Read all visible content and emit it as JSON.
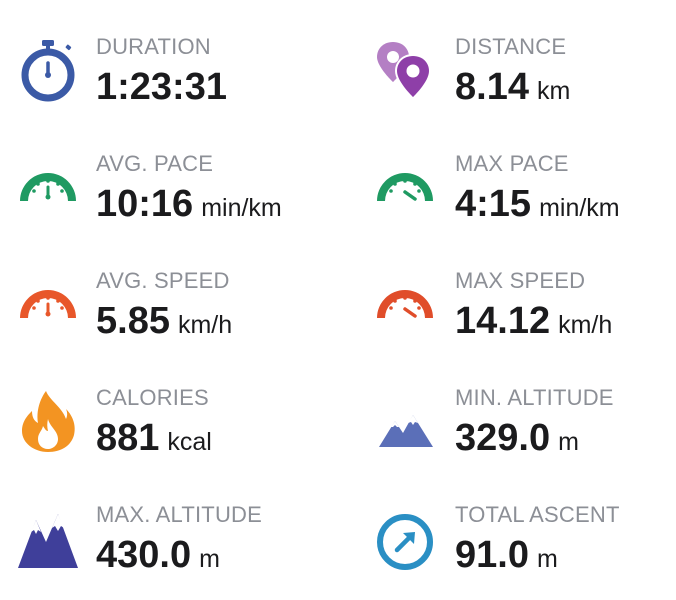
{
  "stats": [
    {
      "label": "DURATION",
      "value": "1:23:31",
      "unit": "",
      "icon": "stopwatch-icon",
      "color": "#3b5aa6"
    },
    {
      "label": "DISTANCE",
      "value": "8.14",
      "unit": "km",
      "icon": "map-pins-icon",
      "color": "#8e3fa8"
    },
    {
      "label": "AVG. PACE",
      "value": "10:16",
      "unit": "min/km",
      "icon": "gauge-icon",
      "color": "#1f9a62"
    },
    {
      "label": "MAX PACE",
      "value": "4:15",
      "unit": "min/km",
      "icon": "gauge-high-icon",
      "color": "#1f9a62"
    },
    {
      "label": "AVG. SPEED",
      "value": "5.85",
      "unit": "km/h",
      "icon": "gauge-icon",
      "color": "#e8572a"
    },
    {
      "label": "MAX SPEED",
      "value": "14.12",
      "unit": "km/h",
      "icon": "gauge-high-icon",
      "color": "#e04d2a"
    },
    {
      "label": "CALORIES",
      "value": "881",
      "unit": "kcal",
      "icon": "flame-icon",
      "color": "#f39422"
    },
    {
      "label": "MIN. ALTITUDE",
      "value": "329.0",
      "unit": "m",
      "icon": "mountains-low-icon",
      "color": "#5b6fb8"
    },
    {
      "label": "MAX. ALTITUDE",
      "value": "430.0",
      "unit": "m",
      "icon": "mountains-high-icon",
      "color": "#3f3f9a"
    },
    {
      "label": "TOTAL ASCENT",
      "value": "91.0",
      "unit": "m",
      "icon": "ascent-arrow-icon",
      "color": "#2a8fc4"
    }
  ]
}
